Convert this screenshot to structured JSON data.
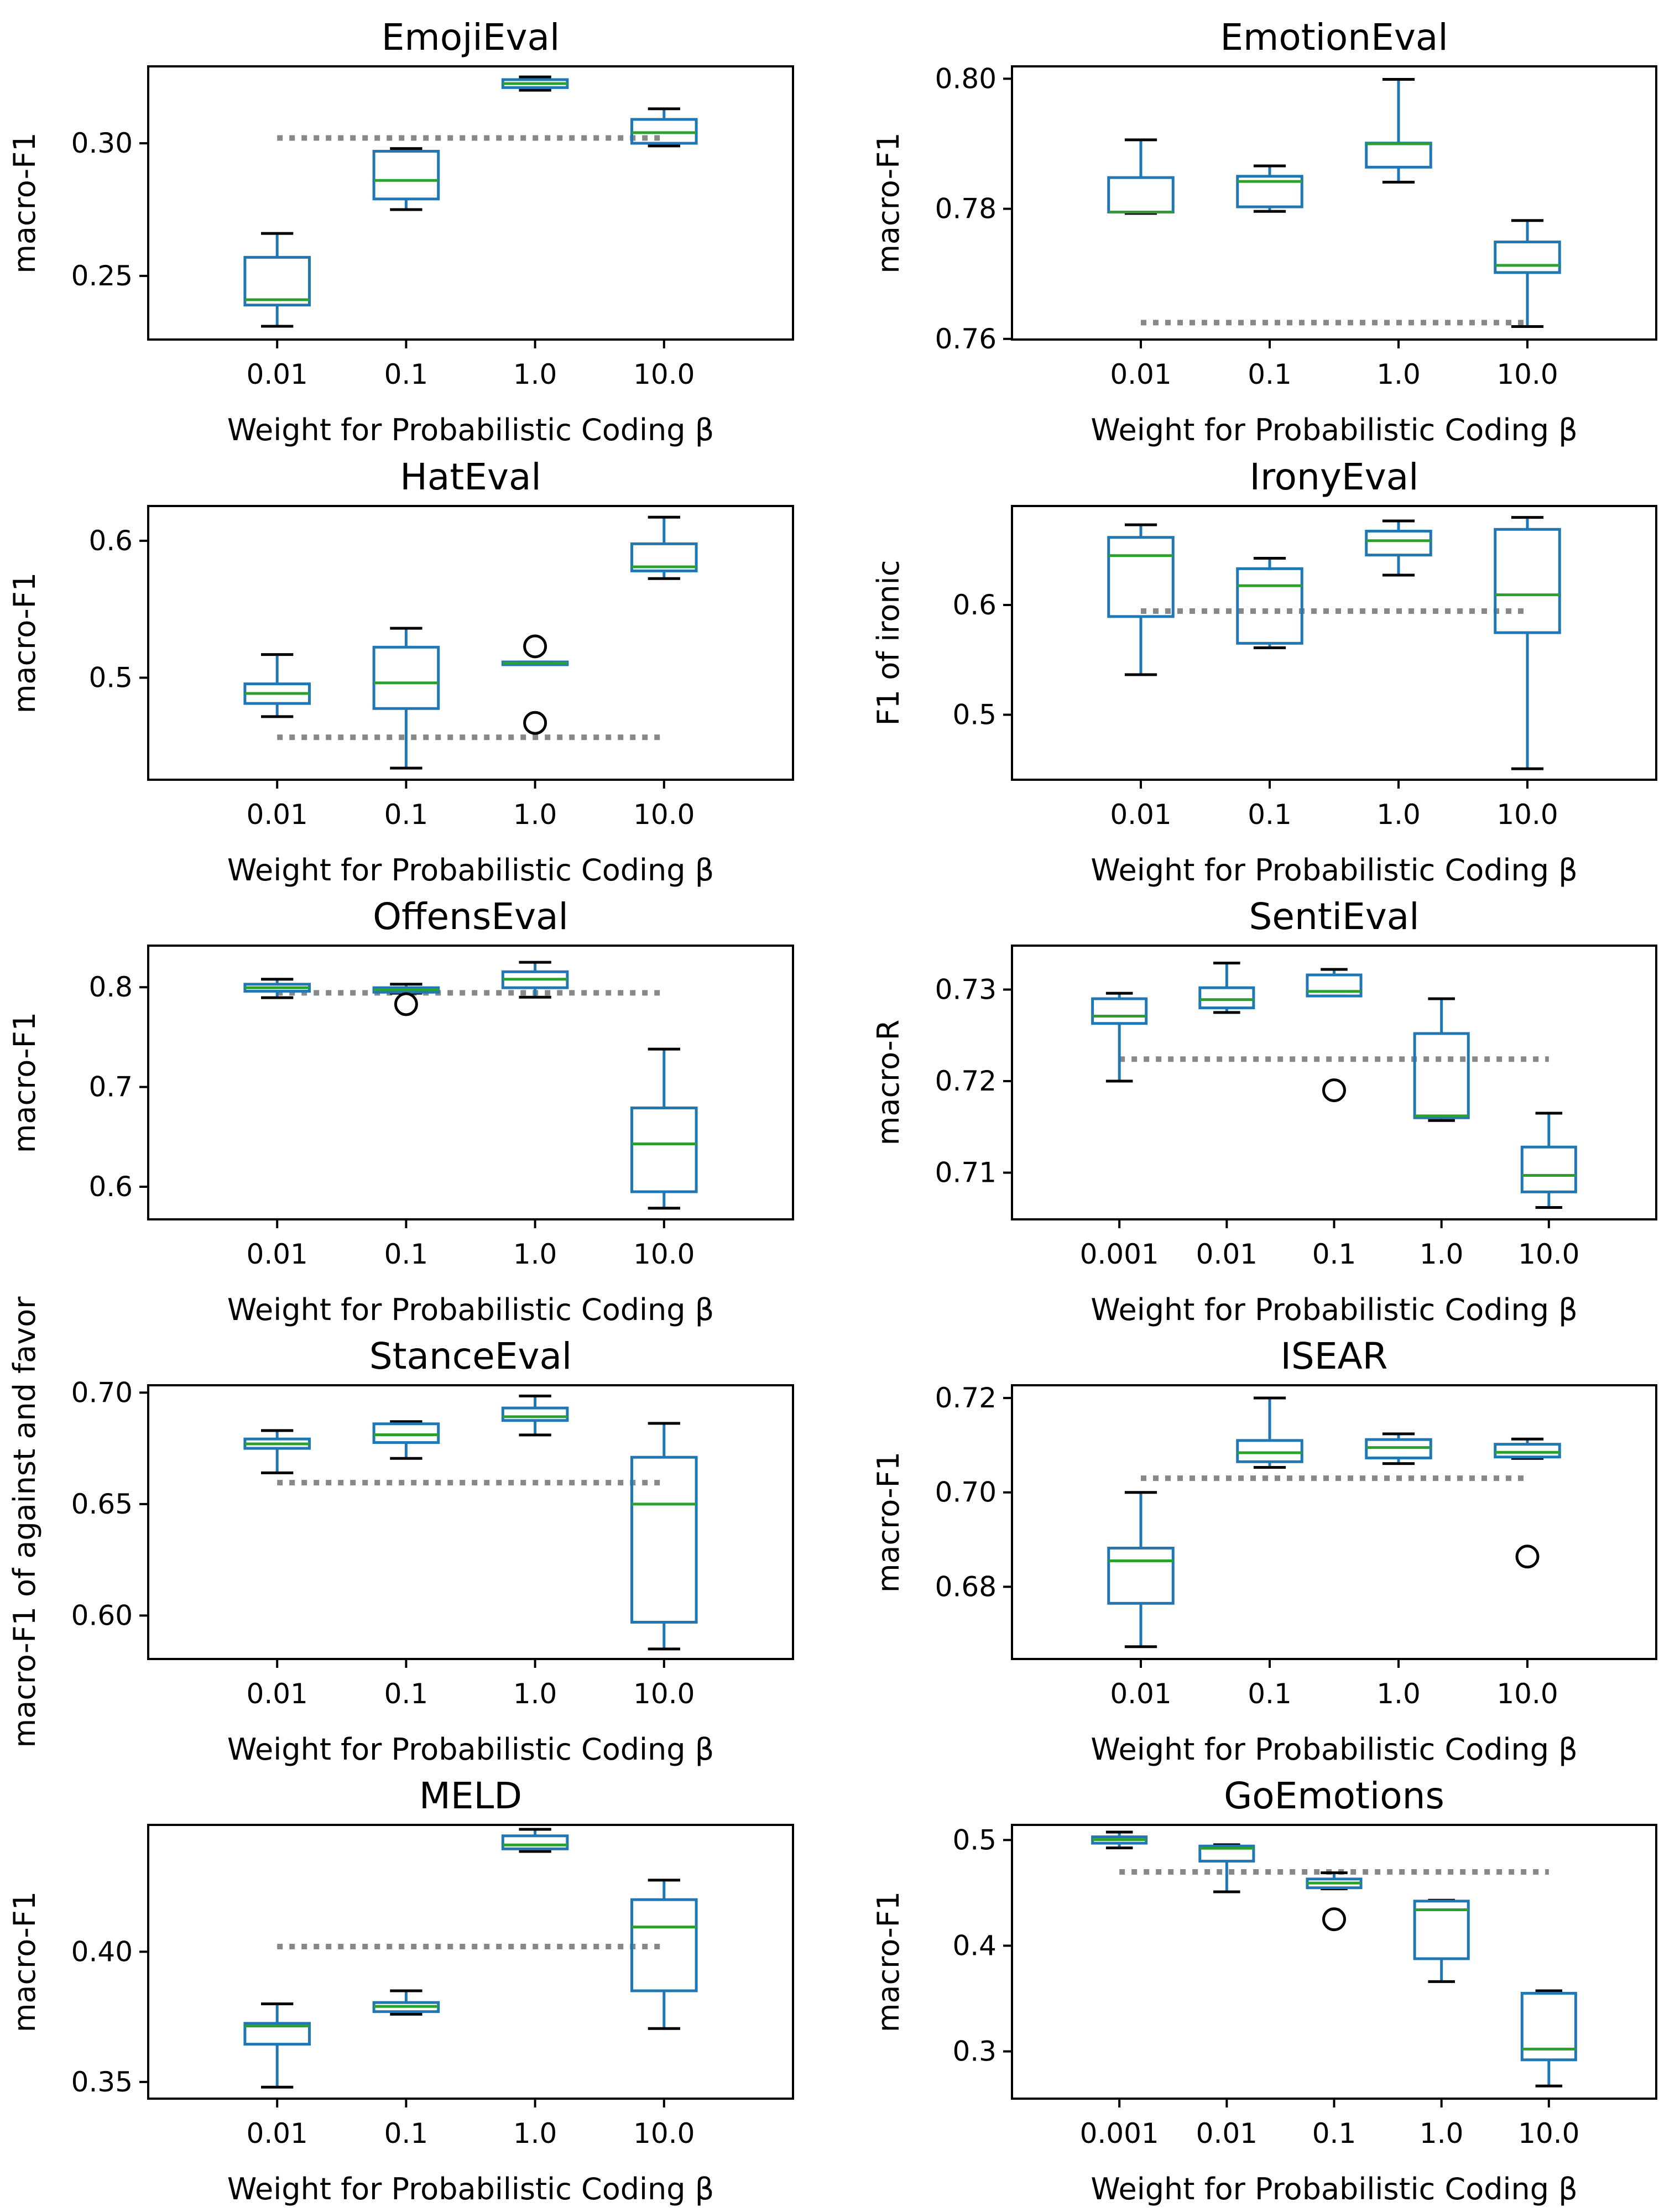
{
  "colors": {
    "box": "#1f77b4",
    "median": "#2ca02c",
    "whisker": "#000000",
    "baseline": "#888888",
    "axis": "#000000",
    "background": "#ffffff"
  },
  "chart_data": [
    {
      "type": "box",
      "title": "EmojiEval",
      "xlabel": "Weight for Probabilistic Coding β",
      "ylabel": "macro-F1",
      "ylim": [
        0.226,
        0.329
      ],
      "yticks": [
        0.25,
        0.3
      ],
      "ytick_labels": [
        "0.25",
        "0.30"
      ],
      "categories": [
        "0.01",
        "0.1",
        "1.0",
        "10.0"
      ],
      "baseline": 0.302,
      "boxes": [
        {
          "min": 0.231,
          "q1": 0.239,
          "median": 0.241,
          "q3": 0.257,
          "max": 0.266,
          "outliers": []
        },
        {
          "min": 0.275,
          "q1": 0.279,
          "median": 0.286,
          "q3": 0.297,
          "max": 0.298,
          "outliers": []
        },
        {
          "min": 0.32,
          "q1": 0.321,
          "median": 0.3225,
          "q3": 0.324,
          "max": 0.325,
          "outliers": []
        },
        {
          "min": 0.299,
          "q1": 0.3,
          "median": 0.304,
          "q3": 0.309,
          "max": 0.313,
          "outliers": []
        }
      ]
    },
    {
      "type": "box",
      "title": "EmotionEval",
      "xlabel": "Weight for Probabilistic Coding β",
      "ylabel": "macro-F1",
      "ylim": [
        0.7599,
        0.8019
      ],
      "yticks": [
        0.76,
        0.78,
        0.8
      ],
      "ytick_labels": [
        "0.76",
        "0.78",
        "0.80"
      ],
      "categories": [
        "0.01",
        "0.1",
        "1.0",
        "10.0"
      ],
      "baseline": 0.7625,
      "boxes": [
        {
          "min": 0.7793,
          "q1": 0.7795,
          "median": 0.7795,
          "q3": 0.7848,
          "max": 0.7906,
          "outliers": []
        },
        {
          "min": 0.7796,
          "q1": 0.7803,
          "median": 0.7842,
          "q3": 0.785,
          "max": 0.7866,
          "outliers": []
        },
        {
          "min": 0.7841,
          "q1": 0.7864,
          "median": 0.79,
          "q3": 0.7901,
          "max": 0.7999,
          "outliers": []
        },
        {
          "min": 0.7619,
          "q1": 0.7702,
          "median": 0.7713,
          "q3": 0.7749,
          "max": 0.7782,
          "outliers": []
        }
      ]
    },
    {
      "type": "box",
      "title": "HatEval",
      "xlabel": "Weight for Probabilistic Coding β",
      "ylabel": "macro-F1",
      "ylim": [
        0.4255,
        0.6254
      ],
      "yticks": [
        0.5,
        0.6
      ],
      "ytick_labels": [
        "0.5",
        "0.6"
      ],
      "categories": [
        "0.01",
        "0.1",
        "1.0",
        "10.0"
      ],
      "baseline": 0.4565,
      "boxes": [
        {
          "min": 0.4716,
          "q1": 0.4812,
          "median": 0.4885,
          "q3": 0.4955,
          "max": 0.5169,
          "outliers": []
        },
        {
          "min": 0.434,
          "q1": 0.4775,
          "median": 0.4962,
          "q3": 0.5223,
          "max": 0.5361,
          "outliers": []
        },
        {
          "min": 0.5095,
          "q1": 0.5095,
          "median": 0.5106,
          "q3": 0.5115,
          "max": 0.5115,
          "outliers": [
            0.5229,
            0.467
          ]
        },
        {
          "min": 0.5724,
          "q1": 0.578,
          "median": 0.581,
          "q3": 0.5978,
          "max": 0.6172,
          "outliers": []
        }
      ]
    },
    {
      "type": "box",
      "title": "IronyEval",
      "xlabel": "Weight for Probabilistic Coding β",
      "ylabel": "F1 of ironic",
      "ylim": [
        0.4408,
        0.6902
      ],
      "yticks": [
        0.5,
        0.6
      ],
      "ytick_labels": [
        "0.5",
        "0.6"
      ],
      "categories": [
        "0.01",
        "0.1",
        "1.0",
        "10.0"
      ],
      "baseline": 0.5945,
      "boxes": [
        {
          "min": 0.5365,
          "q1": 0.5895,
          "median": 0.645,
          "q3": 0.6616,
          "max": 0.6731,
          "outliers": []
        },
        {
          "min": 0.561,
          "q1": 0.5651,
          "median": 0.6176,
          "q3": 0.6331,
          "max": 0.6426,
          "outliers": []
        },
        {
          "min": 0.6272,
          "q1": 0.6455,
          "median": 0.6586,
          "q3": 0.6673,
          "max": 0.6766,
          "outliers": []
        },
        {
          "min": 0.4508,
          "q1": 0.5748,
          "median": 0.6093,
          "q3": 0.6689,
          "max": 0.6798,
          "outliers": []
        }
      ]
    },
    {
      "type": "box",
      "title": "OffensEval",
      "xlabel": "Weight for Probabilistic Coding β",
      "ylabel": "macro-F1",
      "ylim": [
        0.5673,
        0.8417
      ],
      "yticks": [
        0.6,
        0.7,
        0.8
      ],
      "ytick_labels": [
        "0.6",
        "0.7",
        "0.8"
      ],
      "categories": [
        "0.01",
        "0.1",
        "1.0",
        "10.0"
      ],
      "baseline": 0.7944,
      "boxes": [
        {
          "min": 0.7895,
          "q1": 0.796,
          "median": 0.7995,
          "q3": 0.803,
          "max": 0.808,
          "outliers": []
        },
        {
          "min": 0.794,
          "q1": 0.795,
          "median": 0.7975,
          "q3": 0.7995,
          "max": 0.803,
          "outliers": [
            0.783
          ]
        },
        {
          "min": 0.79,
          "q1": 0.7995,
          "median": 0.808,
          "q3": 0.8155,
          "max": 0.825,
          "outliers": []
        },
        {
          "min": 0.5785,
          "q1": 0.595,
          "median": 0.643,
          "q3": 0.679,
          "max": 0.738,
          "outliers": []
        }
      ]
    },
    {
      "type": "box",
      "title": "SentiEval",
      "xlabel": "Weight for Probabilistic Coding β",
      "ylabel": "macro-R",
      "ylim": [
        0.7049,
        0.7348
      ],
      "yticks": [
        0.71,
        0.72,
        0.73
      ],
      "ytick_labels": [
        "0.71",
        "0.72",
        "0.73"
      ],
      "categories": [
        "0.001",
        "0.01",
        "0.1",
        "1.0",
        "10.0"
      ],
      "baseline": 0.7224,
      "boxes": [
        {
          "min": 0.72,
          "q1": 0.7263,
          "median": 0.7271,
          "q3": 0.729,
          "max": 0.7296,
          "outliers": []
        },
        {
          "min": 0.7275,
          "q1": 0.728,
          "median": 0.7289,
          "q3": 0.7302,
          "max": 0.7329,
          "outliers": []
        },
        {
          "min": 0.7293,
          "q1": 0.7293,
          "median": 0.7298,
          "q3": 0.7316,
          "max": 0.7322,
          "outliers": [
            0.719
          ]
        },
        {
          "min": 0.7157,
          "q1": 0.716,
          "median": 0.7162,
          "q3": 0.7252,
          "max": 0.729,
          "outliers": []
        },
        {
          "min": 0.7062,
          "q1": 0.7079,
          "median": 0.7097,
          "q3": 0.7128,
          "max": 0.7165,
          "outliers": []
        }
      ]
    },
    {
      "type": "box",
      "title": "StanceEval",
      "xlabel": "Weight for Probabilistic Coding β",
      "ylabel": "macro-F1 of against and favor",
      "ylim": [
        0.5805,
        0.7033
      ],
      "yticks": [
        0.6,
        0.65,
        0.7
      ],
      "ytick_labels": [
        "0.60",
        "0.65",
        "0.70"
      ],
      "categories": [
        "0.01",
        "0.1",
        "1.0",
        "10.0"
      ],
      "baseline": 0.6596,
      "boxes": [
        {
          "min": 0.664,
          "q1": 0.675,
          "median": 0.677,
          "q3": 0.6792,
          "max": 0.683,
          "outliers": []
        },
        {
          "min": 0.6705,
          "q1": 0.6776,
          "median": 0.6811,
          "q3": 0.686,
          "max": 0.687,
          "outliers": []
        },
        {
          "min": 0.681,
          "q1": 0.6875,
          "median": 0.6892,
          "q3": 0.6931,
          "max": 0.6985,
          "outliers": []
        },
        {
          "min": 0.585,
          "q1": 0.597,
          "median": 0.65,
          "q3": 0.671,
          "max": 0.6862,
          "outliers": []
        }
      ]
    },
    {
      "type": "box",
      "title": "ISEAR",
      "xlabel": "Weight for Probabilistic Coding β",
      "ylabel": "macro-F1",
      "ylim": [
        0.6647,
        0.7227
      ],
      "yticks": [
        0.68,
        0.7,
        0.72
      ],
      "ytick_labels": [
        "0.68",
        "0.70",
        "0.72"
      ],
      "categories": [
        "0.01",
        "0.1",
        "1.0",
        "10.0"
      ],
      "baseline": 0.703,
      "boxes": [
        {
          "min": 0.6673,
          "q1": 0.6765,
          "median": 0.6855,
          "q3": 0.6882,
          "max": 0.7,
          "outliers": []
        },
        {
          "min": 0.7053,
          "q1": 0.7065,
          "median": 0.7084,
          "q3": 0.711,
          "max": 0.72,
          "outliers": []
        },
        {
          "min": 0.7061,
          "q1": 0.7073,
          "median": 0.7095,
          "q3": 0.7112,
          "max": 0.7124,
          "outliers": []
        },
        {
          "min": 0.7072,
          "q1": 0.7075,
          "median": 0.7085,
          "q3": 0.7102,
          "max": 0.7113,
          "outliers": [
            0.6864
          ]
        }
      ]
    },
    {
      "type": "box",
      "title": "MELD",
      "xlabel": "Weight for Probabilistic Coding β",
      "ylabel": "macro-F1",
      "ylim": [
        0.3436,
        0.4487
      ],
      "yticks": [
        0.35,
        0.4
      ],
      "ytick_labels": [
        "0.35",
        "0.40"
      ],
      "categories": [
        "0.01",
        "0.1",
        "1.0",
        "10.0"
      ],
      "baseline": 0.402,
      "boxes": [
        {
          "min": 0.348,
          "q1": 0.3645,
          "median": 0.3715,
          "q3": 0.3725,
          "max": 0.38,
          "outliers": []
        },
        {
          "min": 0.376,
          "q1": 0.377,
          "median": 0.379,
          "q3": 0.3805,
          "max": 0.385,
          "outliers": []
        },
        {
          "min": 0.4385,
          "q1": 0.4395,
          "median": 0.441,
          "q3": 0.4445,
          "max": 0.447,
          "outliers": []
        },
        {
          "min": 0.3705,
          "q1": 0.385,
          "median": 0.4095,
          "q3": 0.42,
          "max": 0.4275,
          "outliers": []
        }
      ]
    },
    {
      "type": "box",
      "title": "GoEmotions",
      "xlabel": "Weight for Probabilistic Coding β",
      "ylabel": "macro-F1",
      "ylim": [
        0.2553,
        0.5143
      ],
      "yticks": [
        0.3,
        0.4,
        0.5
      ],
      "ytick_labels": [
        "0.3",
        "0.4",
        "0.5"
      ],
      "categories": [
        "0.001",
        "0.01",
        "0.1",
        "1.0",
        "10.0"
      ],
      "baseline": 0.4698,
      "boxes": [
        {
          "min": 0.4925,
          "q1": 0.497,
          "median": 0.5004,
          "q3": 0.503,
          "max": 0.5075,
          "outliers": []
        },
        {
          "min": 0.451,
          "q1": 0.48,
          "median": 0.4922,
          "q3": 0.4943,
          "max": 0.4955,
          "outliers": []
        },
        {
          "min": 0.4538,
          "q1": 0.4548,
          "median": 0.4593,
          "q3": 0.4631,
          "max": 0.469,
          "outliers": [
            0.425
          ]
        },
        {
          "min": 0.366,
          "q1": 0.3877,
          "median": 0.434,
          "q3": 0.4422,
          "max": 0.443,
          "outliers": []
        },
        {
          "min": 0.2673,
          "q1": 0.292,
          "median": 0.3022,
          "q3": 0.355,
          "max": 0.3573,
          "outliers": []
        }
      ]
    }
  ]
}
